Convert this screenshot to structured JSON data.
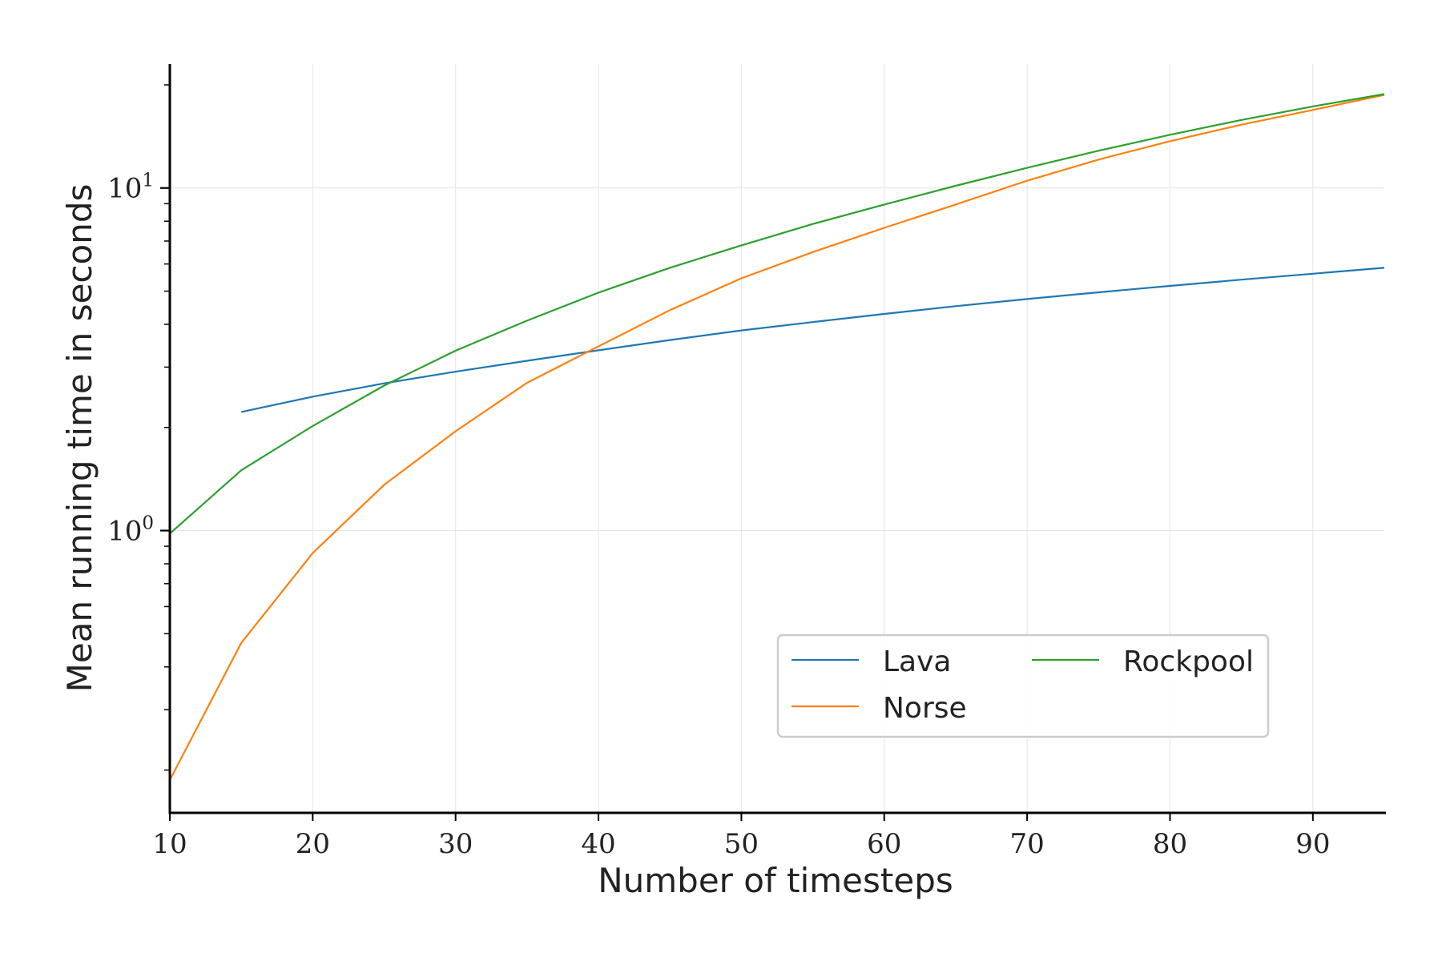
{
  "chart_data": {
    "type": "line",
    "title": "",
    "xlabel": "Number of timesteps",
    "ylabel": "Mean running time in seconds",
    "xlim": [
      10,
      95
    ],
    "ylim": [
      0.15,
      23
    ],
    "yscale": "log",
    "grid": true,
    "legend_location": "lower-right",
    "x_ticks": [
      10,
      20,
      30,
      40,
      50,
      60,
      70,
      80,
      90
    ],
    "x_tick_labels": [
      "10",
      "20",
      "30",
      "40",
      "50",
      "60",
      "70",
      "80",
      "90"
    ],
    "y_ticks": [
      1,
      10
    ],
    "y_tick_labels": [
      {
        "base": "10",
        "exp": "0"
      },
      {
        "base": "10",
        "exp": "1"
      }
    ],
    "y_minor_ticks": [
      0.2,
      0.3,
      0.4,
      0.5,
      0.6,
      0.7,
      0.8,
      0.9,
      2,
      3,
      4,
      5,
      6,
      7,
      8,
      9,
      20
    ],
    "series": [
      {
        "name": "Lava",
        "color": "#1f77b4",
        "x": [
          15,
          20,
          25,
          30,
          35,
          40,
          45,
          50,
          55,
          60,
          65,
          70,
          75,
          80,
          85,
          90,
          95
        ],
        "values": [
          2.22,
          2.46,
          2.69,
          2.91,
          3.13,
          3.36,
          3.6,
          3.84,
          4.06,
          4.29,
          4.52,
          4.74,
          4.96,
          5.18,
          5.4,
          5.62,
          5.85
        ]
      },
      {
        "name": "Norse",
        "color": "#ff7f0e",
        "x": [
          10,
          15,
          20,
          25,
          30,
          35,
          40,
          45,
          50,
          55,
          60,
          65,
          70,
          75,
          80,
          85,
          90,
          95
        ],
        "values": [
          0.187,
          0.47,
          0.86,
          1.36,
          1.95,
          2.7,
          3.45,
          4.4,
          5.45,
          6.5,
          7.65,
          8.95,
          10.5,
          12.1,
          13.7,
          15.3,
          16.9,
          18.7
        ]
      },
      {
        "name": "Rockpool",
        "color": "#2ca02c",
        "x": [
          10,
          15,
          20,
          25,
          30,
          35,
          40,
          45,
          50,
          55,
          60,
          65,
          70,
          75,
          80,
          85,
          90,
          95
        ],
        "values": [
          0.98,
          1.5,
          2.02,
          2.65,
          3.35,
          4.1,
          4.95,
          5.85,
          6.8,
          7.85,
          8.95,
          10.15,
          11.45,
          12.85,
          14.3,
          15.8,
          17.3,
          18.8
        ]
      }
    ]
  }
}
